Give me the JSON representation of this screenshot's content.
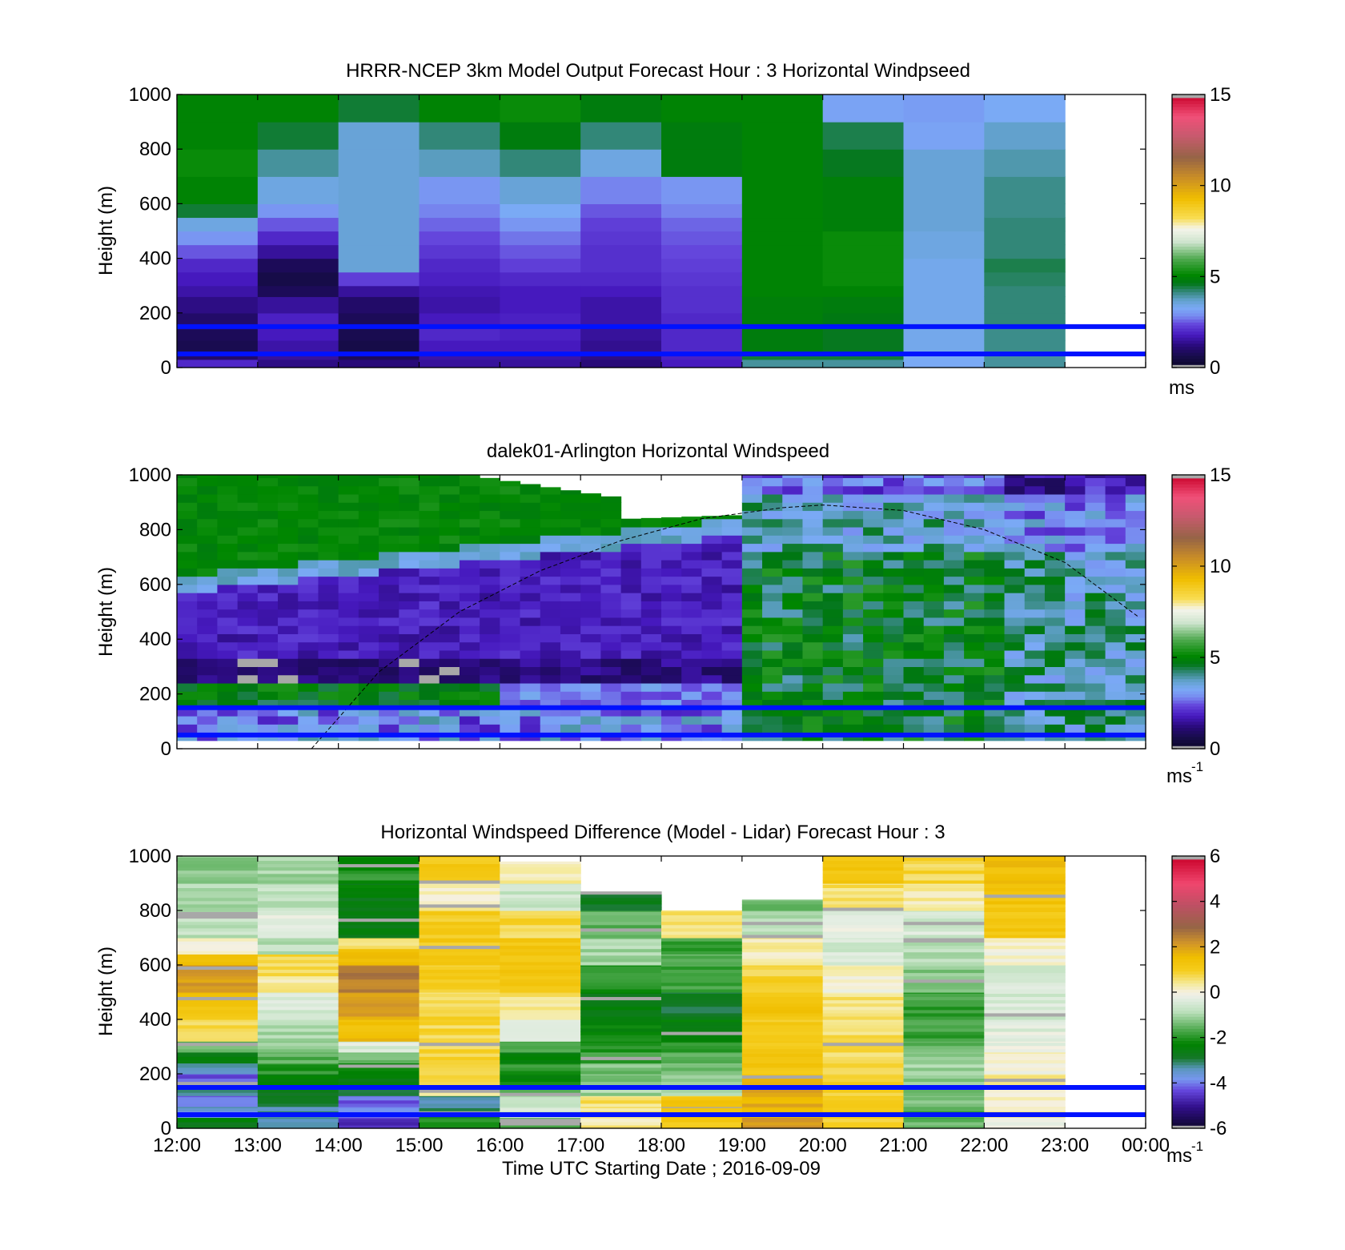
{
  "figure": {
    "xaxis_label": "Time UTC  Starting Date ; 2016-09-09",
    "x_ticks": [
      "12:00",
      "13:00",
      "14:00",
      "15:00",
      "16:00",
      "17:00",
      "18:00",
      "19:00",
      "20:00",
      "21:00",
      "22:00",
      "23:00",
      "00:00"
    ]
  },
  "chart_data": [
    {
      "type": "heatmap",
      "title": "HRRR-NCEP 3km Model Output   Forecast Hour : 3 Horizontal Windpseed",
      "ylabel": "Height (m)",
      "ylim": [
        0,
        1000
      ],
      "y_ticks": [
        "0",
        "200",
        "400",
        "600",
        "800",
        "1000"
      ],
      "xlim": [
        "12:00",
        "00:00"
      ],
      "colorbar": {
        "ticks": [
          "0",
          "5",
          "10",
          "15"
        ],
        "range": [
          0,
          15
        ],
        "unit": "ms"
      },
      "reference_lines_m": [
        150,
        50
      ],
      "column_hours": [
        "12:00",
        "13:00",
        "14:00",
        "15:00",
        "16:00",
        "17:00",
        "18:00",
        "19:00",
        "20:00",
        "21:00",
        "22:00"
      ],
      "columns": [
        {
          "levels": [
            0,
            30,
            60,
            100,
            140,
            200,
            260,
            300,
            350,
            400,
            450,
            500,
            550,
            600,
            700,
            800,
            900,
            1000
          ],
          "speed": [
            2,
            1,
            0.7,
            0.8,
            1,
            1.3,
            1.6,
            1.8,
            2,
            2.5,
            3,
            3.5,
            4.5,
            5,
            5.2,
            5,
            5,
            5
          ]
        },
        {
          "levels": [
            0,
            30,
            60,
            100,
            150,
            200,
            260,
            300,
            350,
            400,
            450,
            500,
            550,
            600,
            700,
            800,
            900,
            1000
          ],
          "speed": [
            1.3,
            1.5,
            1.6,
            1.8,
            1.9,
            1.5,
            0.8,
            0.6,
            0.8,
            1.5,
            2,
            2.5,
            3,
            3.5,
            4,
            4.5,
            5,
            5
          ]
        },
        {
          "levels": [
            0,
            30,
            60,
            100,
            150,
            200,
            260,
            300,
            350,
            400,
            450,
            500,
            550,
            600,
            700,
            800,
            900,
            1000
          ],
          "speed": [
            1.2,
            0.8,
            0.6,
            0.7,
            0.8,
            1,
            1.5,
            2.3,
            3.6,
            3.6,
            3.6,
            3.6,
            3.6,
            3.6,
            3.6,
            3.6,
            4.5,
            4.5
          ]
        },
        {
          "levels": [
            0,
            30,
            60,
            100,
            150,
            200,
            260,
            300,
            350,
            400,
            450,
            500,
            550,
            600,
            700,
            800,
            900,
            1000
          ],
          "speed": [
            1.5,
            1.6,
            1.8,
            2,
            1.8,
            1.6,
            1.7,
            1.9,
            2,
            2.2,
            2.4,
            2.6,
            2.8,
            3,
            3.8,
            4.2,
            5,
            5
          ]
        },
        {
          "levels": [
            0,
            30,
            60,
            100,
            150,
            200,
            260,
            300,
            350,
            400,
            450,
            500,
            550,
            600,
            700,
            800,
            900,
            1000
          ],
          "speed": [
            1.5,
            1.6,
            1.8,
            1.9,
            1.9,
            1.8,
            1.8,
            2,
            2.3,
            2.5,
            2.7,
            3,
            3.3,
            3.6,
            4.2,
            4.8,
            5.2,
            5.2
          ]
        },
        {
          "levels": [
            0,
            30,
            60,
            100,
            150,
            200,
            260,
            300,
            350,
            400,
            450,
            500,
            550,
            600,
            700,
            800,
            900,
            1000
          ],
          "speed": [
            1.2,
            1.3,
            1.4,
            1.5,
            1.6,
            1.6,
            1.8,
            2,
            2.1,
            2.1,
            2.2,
            2.3,
            2.5,
            2.8,
            3.5,
            4.2,
            4.8,
            4.8
          ]
        },
        {
          "levels": [
            0,
            30,
            60,
            100,
            150,
            200,
            260,
            300,
            350,
            400,
            450,
            500,
            550,
            600,
            700,
            800,
            900,
            1000
          ],
          "speed": [
            1.8,
            1.9,
            2,
            2,
            2,
            2.1,
            2.1,
            2.2,
            2.3,
            2.4,
            2.5,
            2.6,
            2.8,
            3,
            4.8,
            4.8,
            5,
            5
          ]
        },
        {
          "levels": [
            0,
            30,
            60,
            100,
            150,
            200,
            260,
            300,
            350,
            400,
            450,
            500,
            550,
            600,
            700,
            800,
            900,
            1000
          ],
          "speed": [
            4,
            4.5,
            4.8,
            4.8,
            4.9,
            4.9,
            5,
            5,
            5,
            5,
            5,
            5,
            5,
            5,
            5,
            5,
            5,
            5
          ]
        },
        {
          "levels": [
            0,
            30,
            60,
            100,
            150,
            200,
            260,
            300,
            350,
            400,
            450,
            500,
            550,
            600,
            700,
            800,
            900,
            1000
          ],
          "speed": [
            4,
            4.5,
            4.6,
            4.6,
            4.7,
            4.8,
            5,
            5.2,
            5.2,
            5.2,
            5.2,
            4.9,
            4.9,
            4.9,
            4.6,
            4.4,
            3.2,
            3.2
          ]
        },
        {
          "levels": [
            0,
            30,
            60,
            100,
            150,
            200,
            260,
            300,
            350,
            400,
            450,
            500,
            550,
            600,
            700,
            800,
            900,
            1000
          ],
          "speed": [
            3.3,
            3.3,
            3.4,
            3.4,
            3.4,
            3.4,
            3.4,
            3.4,
            3.4,
            3.5,
            3.5,
            3.6,
            3.6,
            3.6,
            3.6,
            3.2,
            3.1,
            2.8
          ]
        },
        {
          "levels": [
            0,
            30,
            60,
            100,
            150,
            200,
            260,
            300,
            350,
            400,
            450,
            500,
            550,
            600,
            700,
            800,
            900,
            1000
          ],
          "speed": [
            4,
            4,
            4.1,
            4.1,
            4.2,
            4.2,
            4.2,
            4.3,
            4.4,
            4.2,
            4.2,
            4.2,
            4.1,
            4.1,
            3.9,
            3.7,
            3.3,
            3.3
          ]
        }
      ]
    },
    {
      "type": "heatmap",
      "title": "dalek01-Arlington  Horizontal Windspeed",
      "ylabel": "Height (m)",
      "ylim": [
        0,
        1000
      ],
      "y_ticks": [
        "0",
        "200",
        "400",
        "600",
        "800",
        "1000"
      ],
      "xlim": [
        "12:00",
        "00:00"
      ],
      "colorbar": {
        "ticks": [
          "0",
          "5",
          "10",
          "15"
        ],
        "range": [
          0,
          15
        ],
        "unit": "ms",
        "unit_exponent": "-1"
      },
      "reference_lines_m": [
        150,
        50
      ],
      "overlay_curve": {
        "style": "dashed",
        "points": [
          [
            "13:40",
            0
          ],
          [
            "14:30",
            280
          ],
          [
            "15:30",
            500
          ],
          [
            "16:30",
            650
          ],
          [
            "17:30",
            760
          ],
          [
            "18:30",
            840
          ],
          [
            "19:30",
            880
          ],
          [
            "20:00",
            890
          ],
          [
            "21:00",
            870
          ],
          [
            "22:00",
            800
          ],
          [
            "23:00",
            680
          ],
          [
            "23:55",
            480
          ]
        ]
      },
      "profile_interval_hours": 0.25,
      "end_hour": "23:55",
      "profile_range_m": [
        30,
        1000
      ]
    },
    {
      "type": "heatmap",
      "title": "Horizontal Windspeed Difference (Model - Lidar) Forecast Hour : 3",
      "ylabel": "Height (m)",
      "ylim": [
        0,
        1000
      ],
      "y_ticks": [
        "0",
        "200",
        "400",
        "600",
        "800",
        "1000"
      ],
      "xlim": [
        "12:00",
        "00:00"
      ],
      "colorbar": {
        "ticks": [
          "-6",
          "-4",
          "-2",
          "0",
          "2",
          "4",
          "6"
        ],
        "range": [
          -6,
          6
        ],
        "unit": "ms",
        "unit_exponent": "-1"
      },
      "reference_lines_m": [
        150,
        50
      ],
      "column_hours": [
        "12:00",
        "13:00",
        "14:00",
        "15:00",
        "16:00",
        "17:00",
        "18:00",
        "19:00",
        "20:00",
        "21:00",
        "22:00"
      ],
      "column_tops_m": [
        1000,
        1000,
        1000,
        1000,
        980,
        870,
        800,
        840,
        1000,
        1000,
        1000
      ],
      "columns": [
        {
          "levels": [
            0,
            40,
            80,
            120,
            160,
            200,
            240,
            280,
            320,
            400,
            500,
            600,
            640,
            700,
            800,
            900,
            1000
          ],
          "diff": [
            -2.5,
            -3.5,
            -4,
            -3,
            -4.2,
            -3.2,
            -2.5,
            -1.5,
            0.8,
            1.3,
            2,
            1.5,
            0,
            -0.8,
            -1,
            -1.3,
            -1.6
          ]
        },
        {
          "levels": [
            0,
            40,
            80,
            120,
            160,
            200,
            240,
            280,
            320,
            400,
            500,
            560,
            640,
            700,
            800,
            900,
            1000
          ],
          "diff": [
            -3.3,
            -3.3,
            -2.8,
            -2.8,
            -2.5,
            -2,
            -1.6,
            -1.2,
            -0.9,
            -0.5,
            0.3,
            0.8,
            -0.8,
            -0.3,
            -0.8,
            -1,
            -1.3
          ]
        },
        {
          "levels": [
            0,
            40,
            80,
            120,
            160,
            200,
            240,
            280,
            320,
            400,
            500,
            600,
            660,
            700,
            800,
            900,
            1000
          ],
          "diff": [
            -4.5,
            -4,
            -4.2,
            -3.2,
            -2.6,
            -2.2,
            -1.5,
            -0.4,
            1.5,
            2,
            2.5,
            1.5,
            0.6,
            -2.5,
            -2.5,
            -2,
            -0.6
          ]
        },
        {
          "levels": [
            0,
            40,
            80,
            120,
            160,
            200,
            240,
            280,
            320,
            400,
            500,
            600,
            660,
            700,
            800,
            900,
            1000
          ],
          "diff": [
            -2,
            -3.2,
            -3.3,
            0.5,
            0.8,
            0.8,
            0.8,
            0.8,
            0.8,
            0.8,
            1,
            1.2,
            1.1,
            1.1,
            0.2,
            1.2,
            1.4
          ]
        },
        {
          "levels": [
            0,
            40,
            80,
            120,
            160,
            200,
            240,
            280,
            320,
            400,
            500,
            600,
            700,
            800,
            900,
            980
          ],
          "diff": [
            -1.5,
            -0.5,
            -0.8,
            -1.5,
            -2.3,
            -2,
            -2.5,
            -1.5,
            -0.5,
            0.5,
            1.2,
            1.2,
            0.8,
            -0.6,
            0.3,
            0.7
          ]
        },
        {
          "levels": [
            0,
            40,
            80,
            120,
            160,
            200,
            240,
            280,
            320,
            400,
            500,
            600,
            700,
            800,
            870
          ],
          "diff": [
            0.4,
            0.5,
            0.6,
            -1,
            -1.3,
            -1.3,
            -1.8,
            -2,
            -2.2,
            -2.5,
            -2,
            -1,
            -1.5,
            -2.8,
            -3
          ]
        },
        {
          "levels": [
            0,
            40,
            80,
            120,
            160,
            200,
            240,
            280,
            320,
            400,
            500,
            600,
            640,
            700,
            800
          ],
          "diff": [
            1.2,
            1.3,
            1.2,
            -0.8,
            -1.3,
            -1.5,
            -1.7,
            -2,
            -2.4,
            -2.8,
            -1.8,
            -1.6,
            -1.8,
            0.6,
            -0.3
          ]
        },
        {
          "levels": [
            0,
            40,
            80,
            120,
            160,
            200,
            240,
            280,
            320,
            400,
            500,
            600,
            700,
            800,
            840
          ],
          "diff": [
            2,
            1.8,
            1.8,
            2,
            1.5,
            1.3,
            1.2,
            1.2,
            1.1,
            1.3,
            0.9,
            0.3,
            -0.8,
            -1.5,
            -0.5
          ]
        },
        {
          "levels": [
            0,
            40,
            80,
            120,
            160,
            200,
            240,
            280,
            320,
            400,
            500,
            600,
            700,
            800,
            900,
            1000
          ],
          "diff": [
            1,
            1.2,
            1,
            0.8,
            1,
            0.8,
            0.6,
            0.8,
            0.6,
            0.5,
            0.1,
            -0.5,
            -0.2,
            0.6,
            1.2,
            1.4
          ]
        },
        {
          "levels": [
            0,
            40,
            80,
            120,
            160,
            200,
            240,
            280,
            320,
            400,
            500,
            600,
            700,
            800,
            900,
            1000
          ],
          "diff": [
            -1.5,
            -1.8,
            -1.4,
            -1.3,
            -1.2,
            -1.1,
            -1.3,
            -1.5,
            -1.8,
            -1.8,
            -1.2,
            -0.8,
            -0.5,
            0.3,
            0.8,
            1.5
          ]
        },
        {
          "levels": [
            0,
            40,
            80,
            120,
            160,
            200,
            240,
            280,
            320,
            400,
            500,
            600,
            700,
            800,
            900,
            1000
          ],
          "diff": [
            -0.3,
            0.2,
            0.3,
            0.2,
            0.3,
            0.1,
            0.2,
            -0.1,
            -0.3,
            -0.5,
            -0.5,
            0.1,
            1.2,
            1.3,
            1.5,
            1.4
          ]
        }
      ]
    }
  ],
  "colors": {
    "reference_line": "#0012ff",
    "missing": "#a8a8a8"
  }
}
